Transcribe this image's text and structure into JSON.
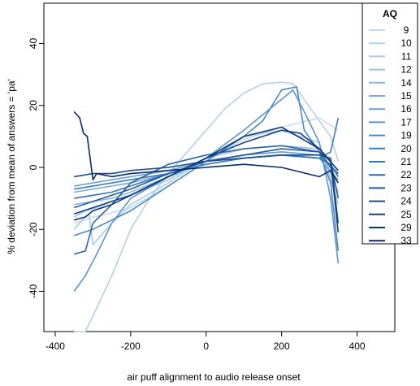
{
  "chart_data": {
    "type": "line",
    "title": "",
    "xlabel": "air puff alignment to audio release onset",
    "ylabel": "% deviation from mean of answers = 'pa'",
    "xlim": [
      -430,
      500
    ],
    "ylim": [
      -53,
      53
    ],
    "xticks": [
      -400,
      -200,
      0,
      200,
      400
    ],
    "yticks": [
      -40,
      -20,
      0,
      20,
      40
    ],
    "grid": false,
    "legend": {
      "title": "AQ",
      "placement": "top-right"
    },
    "series": [
      {
        "name": "9",
        "color": "#c6dbef",
        "x": [
          -350,
          -320,
          -300,
          -260,
          -200,
          -100,
          0,
          100,
          200,
          300,
          350
        ],
        "y": [
          -18,
          -17,
          -16,
          -15,
          -13,
          -6,
          2,
          9,
          13,
          16,
          12
        ]
      },
      {
        "name": "10",
        "color": "#b4d0ea",
        "x": [
          -350,
          -320,
          -300,
          -250,
          -200,
          -150,
          -100,
          -50,
          0,
          50,
          100,
          150,
          200,
          230,
          260,
          300,
          330,
          350
        ],
        "y": [
          -55,
          -53,
          -48,
          -35,
          -20,
          -10,
          -2,
          5,
          12,
          19,
          24,
          27,
          27.5,
          27,
          22,
          15,
          10,
          2
        ]
      },
      {
        "name": "11",
        "color": "#a9cbe8",
        "x": [
          -350,
          -320,
          -310,
          -300,
          -250,
          -200,
          -100,
          0,
          100,
          200,
          300,
          320,
          350
        ],
        "y": [
          -20,
          -16,
          -15,
          -25,
          -18,
          -12,
          -5,
          3,
          10,
          12,
          8,
          0,
          -12
        ]
      },
      {
        "name": "12",
        "color": "#9cc3e4",
        "x": [
          -350,
          -320,
          -290,
          -250,
          -200,
          -100,
          0,
          100,
          200,
          300,
          320,
          350
        ],
        "y": [
          -16,
          -14,
          -13,
          -11,
          -9,
          -4,
          3,
          6,
          7,
          6,
          2,
          -5
        ]
      },
      {
        "name": "14",
        "color": "#8ab7df",
        "x": [
          -350,
          -300,
          -250,
          -200,
          -100,
          0,
          100,
          200,
          300,
          320,
          350
        ],
        "y": [
          -12,
          -11,
          -10,
          -8,
          -3,
          2,
          4,
          5,
          4,
          1,
          -8
        ]
      },
      {
        "name": "15",
        "color": "#78acd9",
        "x": [
          -350,
          -300,
          -250,
          -200,
          -100,
          0,
          100,
          200,
          300,
          320,
          350
        ],
        "y": [
          -8,
          -7,
          -6,
          -5,
          -2,
          1,
          3,
          4,
          3,
          0,
          -4
        ]
      },
      {
        "name": "16",
        "color": "#6aa1d3",
        "x": [
          -350,
          -300,
          -250,
          -200,
          -100,
          0,
          100,
          200,
          300,
          320,
          350
        ],
        "y": [
          -6,
          -5,
          -4,
          -3,
          -1,
          2,
          4,
          5,
          4,
          2,
          -2
        ]
      },
      {
        "name": "17",
        "color": "#5a95cc",
        "x": [
          -350,
          -320,
          -290,
          -250,
          -200,
          -100,
          0,
          100,
          180,
          230,
          260,
          300,
          330,
          350
        ],
        "y": [
          -40,
          -35,
          -28,
          -18,
          -10,
          -3,
          3,
          12,
          20,
          25,
          18,
          8,
          -10,
          -31
        ]
      },
      {
        "name": "19",
        "color": "#4b89c3",
        "x": [
          -350,
          -300,
          -250,
          -200,
          -100,
          0,
          100,
          150,
          200,
          240,
          260,
          300,
          330,
          350
        ],
        "y": [
          -22,
          -20,
          -17,
          -14,
          -6,
          2,
          10,
          15,
          25,
          26,
          12,
          5,
          -5,
          -27
        ]
      },
      {
        "name": "20",
        "color": "#3f7dba",
        "x": [
          -350,
          -300,
          -250,
          -200,
          -100,
          0,
          100,
          200,
          300,
          330,
          350
        ],
        "y": [
          -7,
          -6,
          -5,
          -4,
          -2,
          1,
          3,
          4,
          3,
          5,
          16
        ]
      },
      {
        "name": "21",
        "color": "#3572b1",
        "x": [
          -350,
          -300,
          -250,
          -200,
          -100,
          0,
          100,
          200,
          300,
          330,
          350
        ],
        "y": [
          -10,
          -9,
          -8,
          -6,
          -2,
          2,
          3,
          4,
          3,
          1,
          -3
        ]
      },
      {
        "name": "22",
        "color": "#2c66a6",
        "x": [
          -350,
          -320,
          -300,
          -250,
          -200,
          -150,
          -100,
          0,
          100,
          200,
          300,
          330,
          350
        ],
        "y": [
          -28,
          -27,
          -18,
          -12,
          -5,
          -2,
          1,
          4,
          6,
          7,
          5,
          0,
          -2
        ]
      },
      {
        "name": "23",
        "color": "#235a9b",
        "x": [
          -350,
          -300,
          -250,
          -200,
          -100,
          0,
          100,
          200,
          300,
          330,
          350
        ],
        "y": [
          -13,
          -11,
          -9,
          -7,
          -2,
          2,
          4,
          6,
          5,
          2,
          -10
        ]
      },
      {
        "name": "24",
        "color": "#1b4e8f",
        "x": [
          -350,
          -300,
          -250,
          -200,
          -100,
          0,
          100,
          200,
          300,
          330,
          350
        ],
        "y": [
          -3,
          -2,
          -2,
          -1,
          0,
          2,
          3,
          4,
          4,
          3,
          -18
        ]
      },
      {
        "name": "25",
        "color": "#134283",
        "x": [
          -350,
          -300,
          -250,
          -200,
          -100,
          0,
          100,
          200,
          250,
          300,
          330,
          350
        ],
        "y": [
          -15,
          -13,
          -11,
          -9,
          -3,
          3,
          8,
          12,
          11,
          6,
          2,
          -21
        ]
      },
      {
        "name": "29",
        "color": "#0c3777",
        "x": [
          -350,
          -320,
          -300,
          -250,
          -200,
          -100,
          0,
          100,
          200,
          300,
          350
        ],
        "y": [
          -17,
          -16,
          -14,
          -12,
          -9,
          -3,
          3,
          10,
          13,
          6,
          -1
        ]
      },
      {
        "name": "33",
        "color": "#082b6a",
        "x": [
          -350,
          -335,
          -325,
          -315,
          -300,
          -290,
          -250,
          -200,
          -100,
          0,
          100,
          200,
          300,
          330,
          350
        ],
        "y": [
          18,
          16,
          11,
          10,
          -4,
          -2,
          -3,
          -2,
          -1,
          0,
          1,
          0,
          -3,
          -1,
          -5
        ]
      }
    ]
  }
}
